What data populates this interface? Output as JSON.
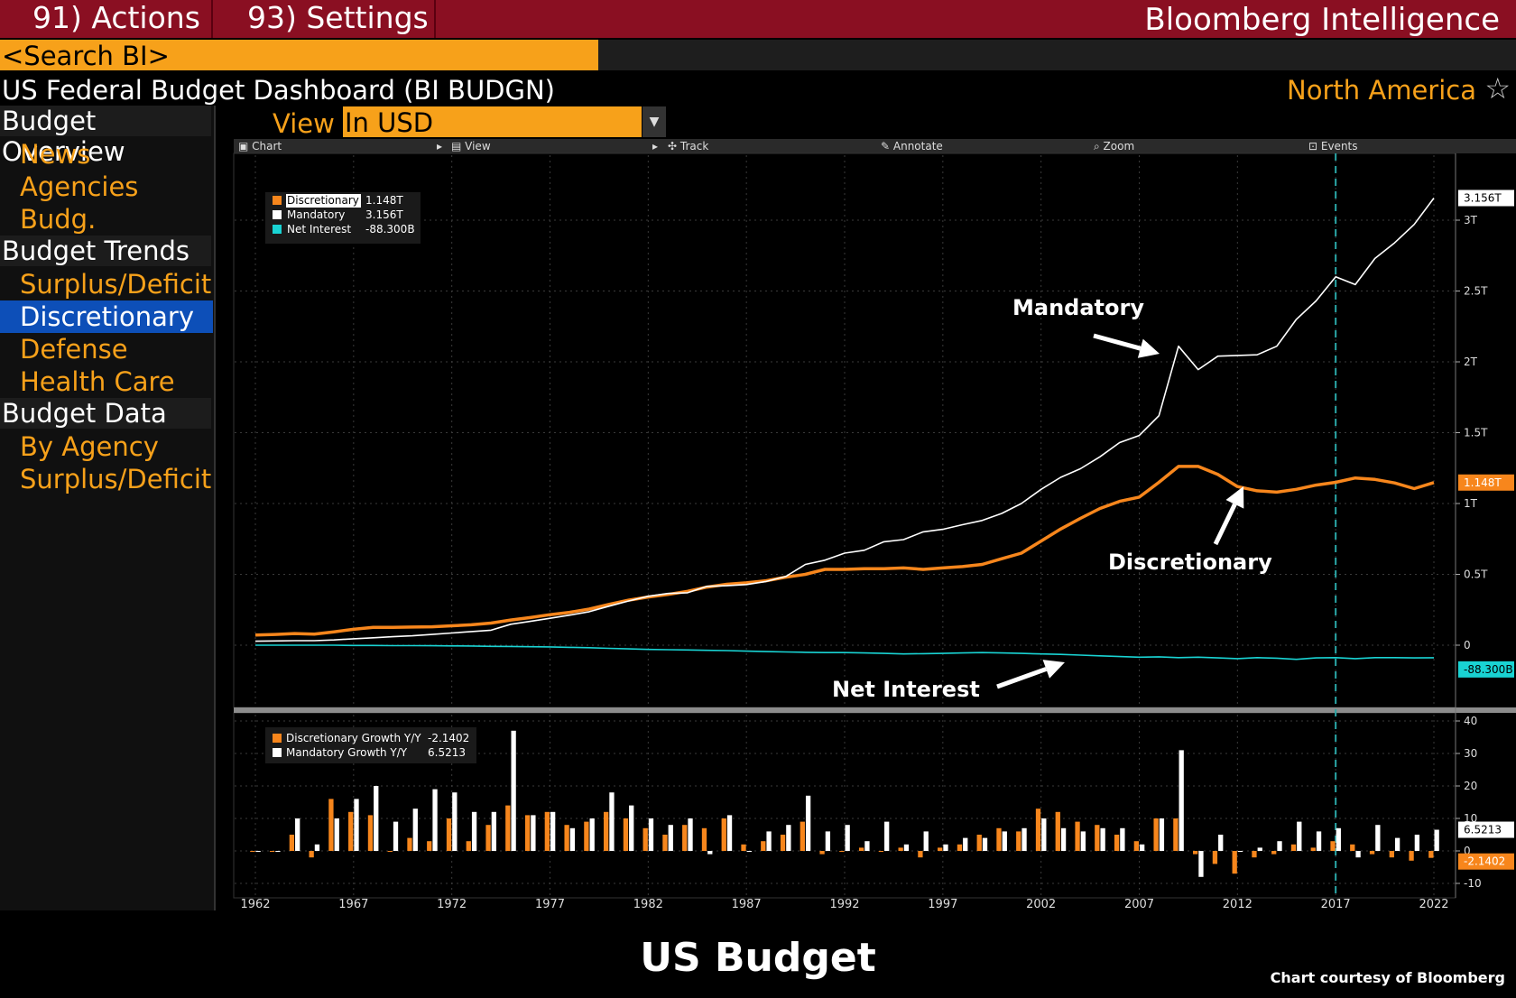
{
  "topbar": {
    "actions_label": "91) Actions ▾",
    "settings_label": "93) Settings",
    "brand": "Bloomberg Intelligence"
  },
  "search": {
    "value": "<Search BI>"
  },
  "dashboard": {
    "title": "US Federal Budget Dashboard (BI BUDGN)",
    "region": "North America",
    "star_icon": "☆"
  },
  "sidebar": {
    "sections": [
      {
        "label": "Budget Overview",
        "items": [
          {
            "label": "News",
            "active": false
          },
          {
            "label": "Agencies",
            "active": false
          },
          {
            "label": "Budg. Variance",
            "active": false
          }
        ]
      },
      {
        "label": "Budget Trends",
        "items": [
          {
            "label": "Surplus/Deficit",
            "active": false
          },
          {
            "label": "Discretionary",
            "active": true
          },
          {
            "label": "Defense",
            "active": false
          },
          {
            "label": "Health Care",
            "active": false
          }
        ]
      },
      {
        "label": "Budget Data",
        "items": [
          {
            "label": "By Agency",
            "active": false
          },
          {
            "label": "Surplus/Deficit",
            "active": false
          }
        ]
      }
    ]
  },
  "view": {
    "label": "View",
    "selected": "In USD",
    "arrow": "▼"
  },
  "toolbar": {
    "chart": "Chart",
    "view": "View",
    "track": "Track",
    "annotate": "Annotate",
    "zoom": "Zoom",
    "events": "Events"
  },
  "colors": {
    "discretionary": "#f7861c",
    "mandatory": "#ffffff",
    "net_interest": "#19d3d3",
    "accent": "#f7a11a",
    "topbar": "#8a0f22",
    "active": "#0d4fb8"
  },
  "annotations": {
    "mandatory": "Mandatory",
    "discretionary": "Discretionary",
    "net_interest": "Net Interest"
  },
  "footer": {
    "title": "US Budget",
    "credit": "Chart courtesy of Bloomberg"
  },
  "chart_data": [
    {
      "type": "line",
      "x": [
        1962,
        1963,
        1964,
        1965,
        1966,
        1967,
        1968,
        1969,
        1970,
        1971,
        1972,
        1973,
        1974,
        1975,
        1976,
        1977,
        1978,
        1979,
        1980,
        1981,
        1982,
        1983,
        1984,
        1985,
        1986,
        1987,
        1988,
        1989,
        1990,
        1991,
        1992,
        1993,
        1994,
        1995,
        1996,
        1997,
        1998,
        1999,
        2000,
        2001,
        2002,
        2003,
        2004,
        2005,
        2006,
        2007,
        2008,
        2009,
        2010,
        2011,
        2012,
        2013,
        2014,
        2015,
        2016,
        2017,
        2018,
        2019,
        2020,
        2021,
        2022
      ],
      "series": [
        {
          "name": "Discretionary",
          "last_value": "1.148T",
          "values": [
            0.072,
            0.076,
            0.082,
            0.078,
            0.094,
            0.112,
            0.126,
            0.126,
            0.128,
            0.13,
            0.137,
            0.144,
            0.156,
            0.178,
            0.195,
            0.215,
            0.232,
            0.255,
            0.288,
            0.318,
            0.34,
            0.358,
            0.38,
            0.41,
            0.43,
            0.44,
            0.455,
            0.48,
            0.5,
            0.535,
            0.535,
            0.54,
            0.54,
            0.545,
            0.535,
            0.545,
            0.555,
            0.57,
            0.61,
            0.65,
            0.735,
            0.82,
            0.895,
            0.965,
            1.015,
            1.045,
            1.15,
            1.262,
            1.262,
            1.205,
            1.12,
            1.09,
            1.08,
            1.1,
            1.13,
            1.15,
            1.18,
            1.17,
            1.145,
            1.105,
            1.148
          ]
        },
        {
          "name": "Mandatory",
          "last_value": "3.156T",
          "values": [
            0.028,
            0.03,
            0.032,
            0.032,
            0.037,
            0.045,
            0.052,
            0.06,
            0.066,
            0.076,
            0.086,
            0.096,
            0.106,
            0.148,
            0.168,
            0.19,
            0.212,
            0.236,
            0.275,
            0.312,
            0.345,
            0.365,
            0.37,
            0.415,
            0.42,
            0.428,
            0.45,
            0.485,
            0.57,
            0.6,
            0.65,
            0.67,
            0.73,
            0.745,
            0.8,
            0.818,
            0.85,
            0.88,
            0.93,
            1.0,
            1.1,
            1.185,
            1.245,
            1.33,
            1.43,
            1.48,
            1.62,
            2.11,
            1.945,
            2.04,
            2.045,
            2.05,
            2.11,
            2.3,
            2.43,
            2.6,
            2.545,
            2.73,
            2.84,
            2.97,
            3.156
          ]
        },
        {
          "name": "Net Interest",
          "last_value": "-88.300B",
          "values": [
            0,
            0,
            0,
            0,
            0,
            -0.002,
            -0.002,
            -0.003,
            -0.003,
            -0.004,
            -0.005,
            -0.006,
            -0.008,
            -0.009,
            -0.011,
            -0.012,
            -0.015,
            -0.018,
            -0.022,
            -0.026,
            -0.03,
            -0.032,
            -0.034,
            -0.036,
            -0.038,
            -0.042,
            -0.045,
            -0.048,
            -0.05,
            -0.052,
            -0.052,
            -0.055,
            -0.058,
            -0.062,
            -0.06,
            -0.058,
            -0.055,
            -0.052,
            -0.055,
            -0.058,
            -0.062,
            -0.065,
            -0.07,
            -0.075,
            -0.08,
            -0.085,
            -0.082,
            -0.088,
            -0.085,
            -0.09,
            -0.095,
            -0.088,
            -0.092,
            -0.1,
            -0.09,
            -0.088,
            -0.095,
            -0.088,
            -0.088,
            -0.09,
            -0.0883
          ]
        }
      ],
      "yticks": [
        "0",
        "0.5T",
        "1T",
        "1.5T",
        "2T",
        "2.5T",
        "3T"
      ],
      "ylim": [
        -0.4,
        3.5
      ],
      "legend": [
        {
          "name": "Discretionary",
          "value": "1.148T"
        },
        {
          "name": "Mandatory",
          "value": "3.156T"
        },
        {
          "name": "Net Interest",
          "value": "-88.300B"
        }
      ],
      "legend_position": "top-left",
      "grid": true
    },
    {
      "type": "bar",
      "series": [
        {
          "name": "Discretionary Growth Y/Y",
          "last_value": "-2.1402",
          "values": [
            0,
            0,
            5,
            -2,
            16,
            12,
            11,
            0,
            4,
            3,
            10,
            3,
            8,
            14,
            11,
            12,
            8,
            9,
            12,
            10,
            7,
            5,
            8,
            7,
            10,
            2,
            3,
            5,
            9,
            -1,
            0,
            1,
            0,
            1,
            -2,
            1,
            2,
            5,
            7,
            6,
            13,
            12,
            9,
            8,
            5,
            3,
            10,
            10,
            -1,
            -4,
            -7,
            -2,
            -1,
            2,
            1,
            3,
            2,
            -1,
            -2,
            -3,
            -2.1402
          ]
        },
        {
          "name": "Mandatory Growth Y/Y",
          "last_value": "6.5213",
          "values": [
            0,
            0,
            10,
            2,
            10,
            16,
            20,
            9,
            13,
            19,
            18,
            12,
            12,
            37,
            11,
            12,
            7,
            10,
            18,
            14,
            10,
            8,
            10,
            -1,
            11,
            0,
            6,
            8,
            17,
            6,
            8,
            3,
            9,
            2,
            6,
            2,
            4,
            4,
            6,
            7,
            10,
            7,
            6,
            7,
            7,
            2,
            10,
            31,
            -8,
            5,
            0,
            1,
            3,
            9,
            6,
            7,
            -2,
            8,
            4,
            5,
            6.5213
          ]
        }
      ],
      "yticks": [
        "-10",
        "0",
        "10",
        "20",
        "30",
        "40"
      ],
      "ylim": [
        -12,
        42
      ],
      "legend": [
        {
          "name": "Discretionary Growth Y/Y",
          "value": "-2.1402"
        },
        {
          "name": "Mandatory Growth Y/Y",
          "value": "6.5213"
        }
      ],
      "legend_position": "top-left"
    }
  ],
  "xticks": [
    "1962",
    "1967",
    "1972",
    "1977",
    "1982",
    "1987",
    "1992",
    "1997",
    "2002",
    "2007",
    "2012",
    "2017",
    "2022"
  ]
}
